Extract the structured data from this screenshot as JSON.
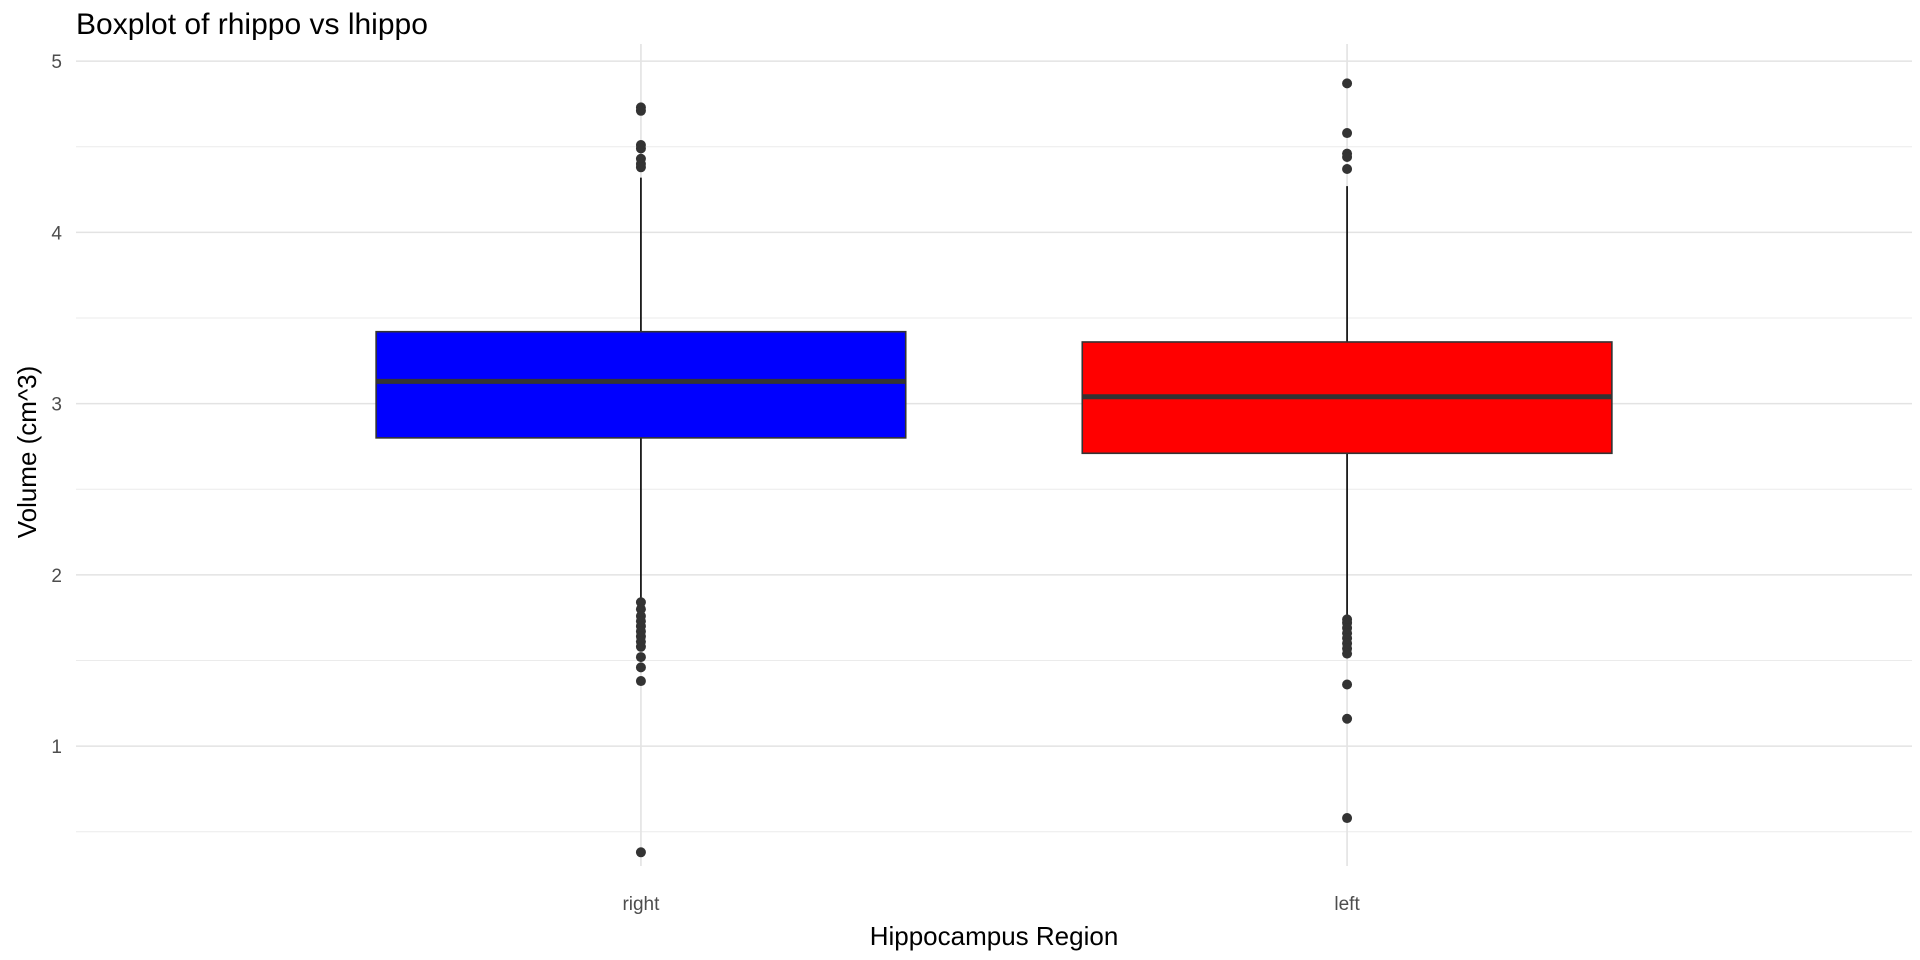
{
  "chart_data": {
    "type": "box",
    "title": "Boxplot of rhippo vs lhippo",
    "xlabel": "Hippocampus Region",
    "ylabel": "Volume (cm^3)",
    "ylim": [
      0.3,
      5.1
    ],
    "y_ticks": [
      1,
      2,
      3,
      4,
      5
    ],
    "grid": true,
    "categories": [
      "right",
      "left"
    ],
    "boxes": [
      {
        "category": "right",
        "fill": "#0000ff",
        "lower_whisker": 1.86,
        "q1": 2.8,
        "median": 3.13,
        "q3": 3.42,
        "upper_whisker": 4.32,
        "outliers": [
          4.73,
          4.71,
          4.51,
          4.49,
          4.43,
          4.4,
          4.38,
          1.84,
          1.8,
          1.76,
          1.73,
          1.7,
          1.67,
          1.64,
          1.61,
          1.58,
          1.52,
          1.46,
          1.38,
          0.38
        ]
      },
      {
        "category": "left",
        "fill": "#ff0000",
        "lower_whisker": 1.76,
        "q1": 2.71,
        "median": 3.04,
        "q3": 3.36,
        "upper_whisker": 4.27,
        "outliers": [
          4.87,
          4.58,
          4.46,
          4.44,
          4.37,
          1.74,
          1.72,
          1.69,
          1.66,
          1.63,
          1.6,
          1.57,
          1.54,
          1.36,
          1.16,
          0.58
        ]
      }
    ]
  }
}
